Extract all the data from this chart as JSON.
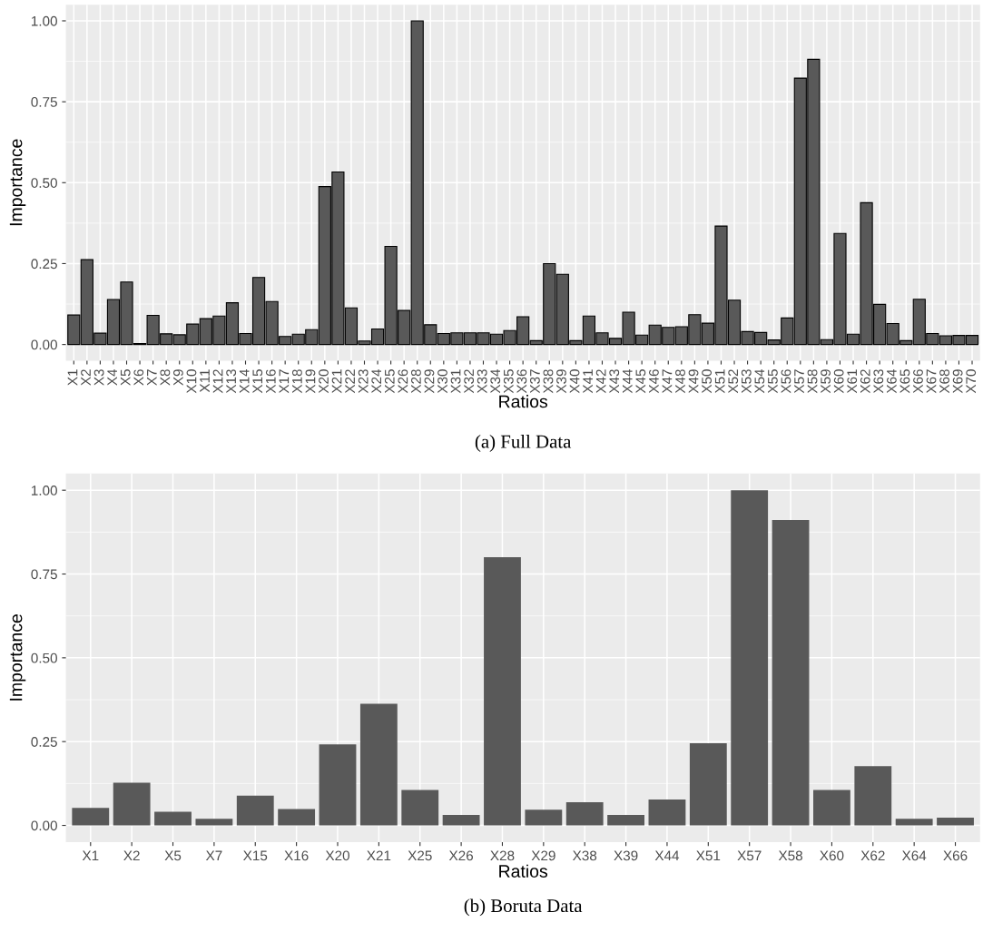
{
  "chart_data": [
    {
      "type": "bar",
      "xlabel": "Ratios",
      "ylabel": "Importance",
      "annotations": [
        "(a) Full Data"
      ],
      "color": "#595959",
      "ylim": [
        -0.05,
        1.05
      ],
      "yticks": [
        {
          "value": 0,
          "label": "0.00"
        },
        {
          "value": 0.25,
          "label": "0.25"
        },
        {
          "value": 0.5,
          "label": "0.50"
        },
        {
          "value": 0.75,
          "label": "0.75"
        },
        {
          "value": 1,
          "label": "1.00"
        }
      ],
      "grid": true,
      "categories": [
        "X1",
        "X2",
        "X3",
        "X4",
        "X5",
        "X6",
        "X7",
        "X8",
        "X9",
        "X10",
        "X11",
        "X12",
        "X13",
        "X14",
        "X15",
        "X16",
        "X17",
        "X18",
        "X19",
        "X20",
        "X21",
        "X22",
        "X23",
        "X24",
        "X25",
        "X26",
        "X28",
        "X29",
        "X30",
        "X31",
        "X32",
        "X33",
        "X34",
        "X35",
        "X36",
        "X37",
        "X38",
        "X39",
        "X40",
        "X41",
        "X42",
        "X43",
        "X44",
        "X45",
        "X46",
        "X47",
        "X48",
        "X49",
        "X50",
        "X51",
        "X52",
        "X53",
        "X54",
        "X55",
        "X56",
        "X57",
        "X58",
        "X59",
        "X60",
        "X61",
        "X62",
        "X63",
        "X64",
        "X65",
        "X66",
        "X67",
        "X68",
        "X69",
        "X70"
      ],
      "values": [
        0.091,
        0.262,
        0.035,
        0.139,
        0.193,
        0.003,
        0.09,
        0.033,
        0.03,
        0.063,
        0.08,
        0.088,
        0.129,
        0.034,
        0.207,
        0.133,
        0.025,
        0.032,
        0.046,
        0.488,
        0.533,
        0.113,
        0.011,
        0.048,
        0.303,
        0.105,
        1.0,
        0.061,
        0.034,
        0.036,
        0.036,
        0.036,
        0.032,
        0.043,
        0.086,
        0.012,
        0.25,
        0.217,
        0.012,
        0.088,
        0.036,
        0.019,
        0.1,
        0.029,
        0.06,
        0.053,
        0.055,
        0.092,
        0.066,
        0.366,
        0.137,
        0.04,
        0.037,
        0.014,
        0.082,
        0.823,
        0.881,
        0.015,
        0.343,
        0.032,
        0.438,
        0.124,
        0.065,
        0.012,
        0.14,
        0.034,
        0.027,
        0.028,
        0.028
      ]
    },
    {
      "type": "bar",
      "xlabel": "Ratios",
      "ylabel": "Importance",
      "annotations": [
        "(b) Boruta Data"
      ],
      "color": "#595959",
      "ylim": [
        -0.05,
        1.05
      ],
      "yticks": [
        {
          "value": 0,
          "label": "0.00"
        },
        {
          "value": 0.25,
          "label": "0.25"
        },
        {
          "value": 0.5,
          "label": "0.50"
        },
        {
          "value": 0.75,
          "label": "0.75"
        },
        {
          "value": 1,
          "label": "1.00"
        }
      ],
      "grid": true,
      "categories": [
        "X1",
        "X2",
        "X5",
        "X7",
        "X15",
        "X16",
        "X20",
        "X21",
        "X25",
        "X26",
        "X28",
        "X29",
        "X38",
        "X39",
        "X44",
        "X51",
        "X57",
        "X58",
        "X60",
        "X62",
        "X64",
        "X66"
      ],
      "values": [
        0.052,
        0.127,
        0.041,
        0.02,
        0.089,
        0.049,
        0.242,
        0.363,
        0.106,
        0.031,
        0.8,
        0.047,
        0.069,
        0.031,
        0.077,
        0.245,
        1.0,
        0.911,
        0.106,
        0.177,
        0.02,
        0.023
      ]
    }
  ]
}
